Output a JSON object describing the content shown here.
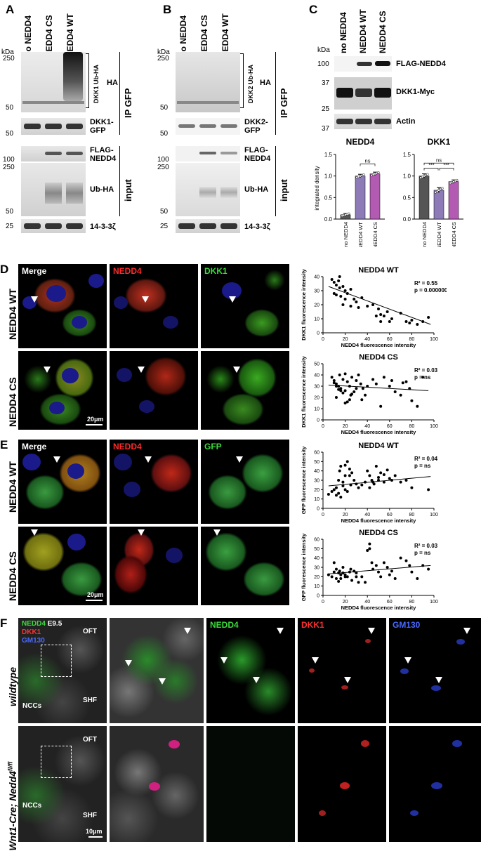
{
  "panels": {
    "A": {
      "letter": "A",
      "columns": [
        "No NEDD4",
        "NEDD4 CS",
        "NEDD4 WT"
      ],
      "kda": "kDa",
      "markers": {
        "m250": "250",
        "m50": "50",
        "m50b": "50",
        "m100": "100",
        "m250b": "250",
        "m50c": "50",
        "m25": "25"
      },
      "labels": {
        "ha": "HA",
        "ub": "DKK1 Ub-HA",
        "ipgfp": "IP GFP",
        "dkk1gfp": "DKK1-\nGFP",
        "flag": "FLAG-\nNEDD4",
        "ubha": "Ub-HA",
        "input": "input",
        "ywhaz": "14-3-3ζ"
      }
    },
    "B": {
      "letter": "B",
      "columns": [
        "No NEDD4",
        "NEDD4 CS",
        "NEDD4 WT"
      ],
      "kda": "kDa",
      "markers": {
        "m250": "250",
        "m50": "50",
        "m50b": "50",
        "m100": "100",
        "m250b": "250",
        "m50c": "50",
        "m25": "25"
      },
      "labels": {
        "ha": "HA",
        "ub": "DKK2 Ub-HA",
        "ipgfp": "IP GFP",
        "dkk2gfp": "DKK2-\nGFP",
        "flag": "FLAG-\nNEDD4",
        "ubha": "Ub-HA",
        "input": "input",
        "ywhaz": "14-3-3ζ"
      }
    },
    "C": {
      "letter": "C",
      "columns": [
        "no NEDD4",
        "NEDD4 WT",
        "NEDD4 CS"
      ],
      "kda": "kDa",
      "markers": {
        "m100": "100",
        "m37": "37",
        "m25": "25",
        "m37b": "37"
      },
      "labels": {
        "flag": "FLAG-NEDD4",
        "dkk1myc": "DKK1-Myc",
        "actin": "Actin"
      }
    },
    "D": {
      "letter": "D",
      "channels": [
        "Merge",
        "NEDD4",
        "DKK1"
      ],
      "rows": [
        "NEDD4 WT",
        "NEDD4 CS"
      ],
      "scale": "20μm"
    },
    "E": {
      "letter": "E",
      "channels": [
        "Merge",
        "NEDD4",
        "GFP"
      ],
      "rows": [
        "NEDD4 WT",
        "NEDD4 CS"
      ],
      "scale": "20μm"
    },
    "F": {
      "letter": "F",
      "legend": {
        "nedd4": "NEDD4",
        "e95": "E9.5",
        "dkk1": "DKK1",
        "gm130": "GM130"
      },
      "channels": [
        "NEDD4",
        "DKK1",
        "GM130"
      ],
      "rows": [
        "wildtype",
        "Wnt1-Cre; Nedd4"
      ],
      "row2_sup": "fl/fl",
      "tags": {
        "oft": "OFT",
        "nccs": "NCCs",
        "shf": "SHF",
        "oft2": "OFT",
        "nccs2": "NCCs",
        "shf2": "SHF"
      },
      "scale": "10μm"
    }
  },
  "chart_data": [
    {
      "type": "bar",
      "title": "NEDD4",
      "categories": [
        "no NEDD4",
        "NEDD4 WT",
        "NEDD4 CS"
      ],
      "values": [
        0.1,
        1.0,
        1.05
      ],
      "errors": [
        0.03,
        0.04,
        0.04
      ],
      "colors": [
        "#555555",
        "#8d7bb8",
        "#b35bb3"
      ],
      "ylabel": "integrated density",
      "ylim": [
        0,
        1.5
      ],
      "yticks": [
        "0.0",
        "0.5",
        "1.0",
        "1.5"
      ],
      "annotations": [
        "ns"
      ]
    },
    {
      "type": "bar",
      "title": "DKK1",
      "categories": [
        "no NEDD4",
        "NEDD4 WT",
        "NEDD4 CS"
      ],
      "values": [
        1.0,
        0.67,
        0.87
      ],
      "errors": [
        0.05,
        0.06,
        0.04
      ],
      "colors": [
        "#555555",
        "#8d7bb8",
        "#b35bb3"
      ],
      "ylim": [
        0,
        1.5
      ],
      "yticks": [
        "0.0",
        "0.5",
        "1.0",
        "1.5"
      ],
      "annotations": [
        "ns",
        "***",
        "***"
      ]
    },
    {
      "type": "scatter",
      "title": "NEDD4 WT",
      "stats": [
        "R² = 0.55",
        "p = 0.0000009"
      ],
      "xlabel": "NEDD4 fluorescence intensity",
      "ylabel": "DKK1 fluorescence intensity",
      "xlim": [
        0,
        100
      ],
      "ylim": [
        0,
        40
      ],
      "xticks": [
        "0",
        "20",
        "40",
        "60",
        "80",
        "100"
      ],
      "yticks": [
        "0",
        "10",
        "20",
        "30",
        "40"
      ],
      "x": [
        8,
        10,
        12,
        14,
        15,
        18,
        20,
        22,
        25,
        10,
        12,
        16,
        20,
        30,
        35,
        40,
        45,
        50,
        52,
        55,
        58,
        60,
        62,
        70,
        75,
        78,
        80,
        85,
        90,
        95,
        15,
        18,
        25,
        28,
        32,
        48,
        52
      ],
      "y": [
        38,
        36,
        34,
        37,
        40,
        33,
        30,
        28,
        31,
        28,
        27,
        26,
        24,
        22,
        25,
        19,
        20,
        17,
        13,
        12,
        15,
        8,
        10,
        14,
        8,
        7,
        9,
        6,
        8,
        11,
        32,
        20,
        19,
        24,
        18,
        12,
        8
      ],
      "fit": [
        [
          5,
          33
        ],
        [
          97,
          6
        ]
      ]
    },
    {
      "type": "scatter",
      "title": "NEDD4 CS",
      "stats": [
        "R² = 0.03",
        "p = ns"
      ],
      "xlabel": "NEDD4 fluorescence intensity",
      "ylabel": "DKK1 fluorescence intensity",
      "xlim": [
        0,
        100
      ],
      "ylim": [
        0,
        50
      ],
      "xticks": [
        "0",
        "20",
        "40",
        "60",
        "80",
        "100"
      ],
      "yticks": [
        "0",
        "10",
        "20",
        "30",
        "40",
        "50"
      ],
      "x": [
        8,
        10,
        12,
        14,
        15,
        16,
        18,
        20,
        22,
        24,
        25,
        26,
        28,
        30,
        32,
        34,
        35,
        36,
        38,
        40,
        12,
        14,
        18,
        20,
        22,
        24,
        45,
        48,
        52,
        55,
        60,
        62,
        65,
        70,
        72,
        75,
        78,
        80,
        85,
        90,
        16,
        20,
        26,
        30,
        10,
        12
      ],
      "y": [
        38,
        35,
        32,
        30,
        40,
        28,
        36,
        26,
        34,
        30,
        22,
        38,
        25,
        35,
        40,
        32,
        18,
        28,
        22,
        30,
        20,
        27,
        24,
        15,
        16,
        18,
        36,
        32,
        12,
        38,
        30,
        35,
        25,
        22,
        33,
        34,
        28,
        17,
        12,
        38,
        26,
        41,
        23,
        28,
        33,
        30
      ],
      "fit": [
        [
          5,
          31
        ],
        [
          95,
          26
        ]
      ]
    },
    {
      "type": "scatter",
      "title": "NEDD4 WT",
      "stats": [
        "R² = 0.04",
        "p = ns"
      ],
      "xlabel": "NEDD4 fluorescence intensity",
      "ylabel": "GFP fluorescence intensity",
      "xlim": [
        0,
        100
      ],
      "ylim": [
        0,
        60
      ],
      "xticks": [
        "0",
        "20",
        "40",
        "60",
        "80",
        "100"
      ],
      "yticks": [
        "0",
        "10",
        "20",
        "30",
        "40",
        "50",
        "60"
      ],
      "x": [
        5,
        8,
        10,
        12,
        14,
        15,
        16,
        18,
        20,
        22,
        24,
        25,
        26,
        28,
        30,
        32,
        40,
        42,
        44,
        45,
        48,
        50,
        52,
        55,
        58,
        60,
        62,
        65,
        70,
        75,
        80,
        95,
        12,
        14,
        16,
        18,
        20,
        22,
        35,
        38,
        42,
        46,
        50,
        55,
        20,
        24
      ],
      "y": [
        15,
        18,
        20,
        22,
        30,
        40,
        45,
        28,
        35,
        50,
        42,
        25,
        38,
        30,
        26,
        22,
        40,
        35,
        30,
        28,
        45,
        33,
        38,
        36,
        41,
        32,
        30,
        35,
        28,
        30,
        22,
        20,
        14,
        16,
        12,
        24,
        20,
        18,
        25,
        28,
        22,
        26,
        30,
        28,
        46,
        35
      ],
      "fit": [
        [
          5,
          24
        ],
        [
          97,
          34
        ]
      ]
    },
    {
      "type": "scatter",
      "title": "NEDD4 CS",
      "stats": [
        "R² = 0.03",
        "p = ns"
      ],
      "xlabel": "NEDD4 fluorescence intensity",
      "ylabel": "GFP fluorescence intensity",
      "xlim": [
        0,
        100
      ],
      "ylim": [
        0,
        60
      ],
      "xticks": [
        "0",
        "20",
        "40",
        "60",
        "80",
        "100"
      ],
      "yticks": [
        "0",
        "10",
        "20",
        "30",
        "40",
        "50",
        "60"
      ],
      "x": [
        5,
        8,
        10,
        12,
        14,
        15,
        16,
        18,
        20,
        22,
        24,
        25,
        26,
        28,
        30,
        32,
        35,
        40,
        42,
        44,
        45,
        48,
        50,
        52,
        55,
        58,
        60,
        62,
        65,
        70,
        75,
        80,
        85,
        90,
        95,
        10,
        12,
        14,
        16,
        18,
        20,
        30,
        38,
        42,
        78
      ],
      "y": [
        22,
        20,
        25,
        28,
        24,
        26,
        18,
        30,
        22,
        20,
        25,
        28,
        16,
        26,
        24,
        14,
        20,
        48,
        50,
        35,
        28,
        32,
        25,
        20,
        35,
        30,
        22,
        26,
        18,
        40,
        37,
        25,
        18,
        32,
        28,
        35,
        18,
        15,
        22,
        24,
        20,
        20,
        14,
        55,
        32
      ],
      "fit": [
        [
          5,
          23
        ],
        [
          97,
          32
        ]
      ]
    }
  ]
}
